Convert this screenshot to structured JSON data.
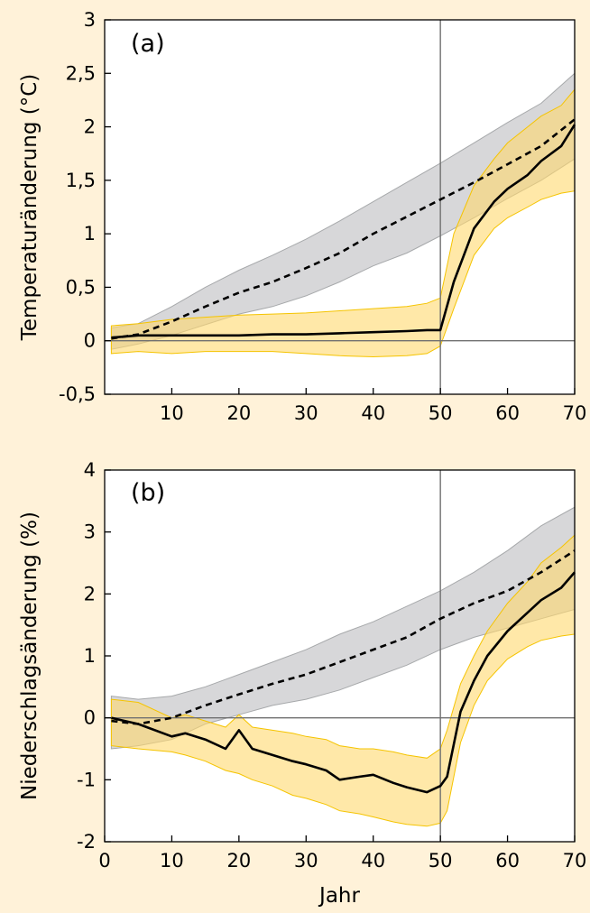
{
  "colors": {
    "background": "#FFF2D9",
    "plot_bg": "#FFFFFF",
    "gray_band": "#C9CACC",
    "gray_band_edge": "#A7A9AB",
    "yellow_band": "#FFD96E",
    "yellow_band_edge": "#F5C400",
    "line": "#000000"
  },
  "chart_data": [
    {
      "type": "area",
      "panel_label": "(a)",
      "xlabel": "",
      "ylabel": "Temperaturänderung (°C)",
      "xlim": [
        0,
        70
      ],
      "ylim": [
        -0.5,
        3
      ],
      "xticks": [
        10,
        20,
        30,
        40,
        50,
        60,
        70
      ],
      "xtick_labels": [
        "10",
        "20",
        "30",
        "40",
        "50",
        "60",
        "70"
      ],
      "yticks": [
        -0.5,
        0,
        0.5,
        1,
        1.5,
        2,
        2.5,
        3
      ],
      "ytick_labels": [
        "-0,5",
        "0",
        "0,5",
        "1",
        "1,5",
        "2",
        "2,5",
        "3"
      ],
      "vline_x": 50,
      "hline_y": 0,
      "series": [
        {
          "style": "dashed",
          "x": [
            1,
            5,
            10,
            15,
            20,
            25,
            30,
            35,
            40,
            45,
            50,
            55,
            60,
            65,
            70
          ],
          "values": [
            0.02,
            0.06,
            0.18,
            0.32,
            0.45,
            0.55,
            0.68,
            0.82,
            1.0,
            1.16,
            1.32,
            1.48,
            1.65,
            1.82,
            2.07
          ],
          "band_low": [
            -0.08,
            -0.03,
            0.05,
            0.15,
            0.25,
            0.32,
            0.42,
            0.55,
            0.7,
            0.82,
            0.98,
            1.15,
            1.33,
            1.5,
            1.7
          ],
          "band_high": [
            0.12,
            0.16,
            0.32,
            0.5,
            0.66,
            0.8,
            0.95,
            1.12,
            1.3,
            1.48,
            1.66,
            1.85,
            2.04,
            2.22,
            2.5
          ]
        },
        {
          "style": "solid",
          "x": [
            1,
            5,
            10,
            15,
            20,
            25,
            30,
            35,
            40,
            45,
            48,
            50,
            52,
            55,
            58,
            60,
            63,
            65,
            68,
            70
          ],
          "values": [
            0.03,
            0.05,
            0.05,
            0.05,
            0.05,
            0.06,
            0.06,
            0.07,
            0.08,
            0.09,
            0.1,
            0.1,
            0.55,
            1.05,
            1.3,
            1.42,
            1.55,
            1.68,
            1.82,
            2.02
          ],
          "band_low": [
            -0.12,
            -0.1,
            -0.12,
            -0.1,
            -0.1,
            -0.1,
            -0.12,
            -0.14,
            -0.15,
            -0.14,
            -0.12,
            -0.05,
            0.3,
            0.8,
            1.05,
            1.15,
            1.25,
            1.32,
            1.38,
            1.4
          ],
          "band_high": [
            0.14,
            0.16,
            0.2,
            0.22,
            0.24,
            0.25,
            0.26,
            0.28,
            0.3,
            0.32,
            0.35,
            0.4,
            1.0,
            1.45,
            1.7,
            1.85,
            2.0,
            2.1,
            2.2,
            2.35
          ]
        }
      ]
    },
    {
      "type": "area",
      "panel_label": "(b)",
      "xlabel": "Jahr",
      "ylabel": "Niederschlagsänderung (%)",
      "xlim": [
        0,
        70
      ],
      "ylim": [
        -2,
        4
      ],
      "xticks": [
        0,
        10,
        20,
        30,
        40,
        50,
        60,
        70
      ],
      "xtick_labels": [
        "0",
        "10",
        "20",
        "30",
        "40",
        "50",
        "60",
        "70"
      ],
      "yticks": [
        -2,
        -1,
        0,
        1,
        2,
        3,
        4
      ],
      "ytick_labels": [
        "-2",
        "-1",
        "0",
        "1",
        "2",
        "3",
        "4"
      ],
      "vline_x": 50,
      "hline_y": 0,
      "series": [
        {
          "style": "dashed",
          "x": [
            1,
            5,
            10,
            15,
            20,
            25,
            30,
            35,
            40,
            45,
            50,
            55,
            60,
            65,
            70
          ],
          "values": [
            -0.05,
            -0.1,
            0.0,
            0.2,
            0.38,
            0.55,
            0.7,
            0.9,
            1.1,
            1.3,
            1.6,
            1.85,
            2.05,
            2.35,
            2.7
          ],
          "band_low": [
            -0.5,
            -0.45,
            -0.35,
            -0.1,
            0.05,
            0.2,
            0.3,
            0.45,
            0.65,
            0.85,
            1.1,
            1.3,
            1.45,
            1.6,
            1.75
          ],
          "band_high": [
            0.35,
            0.3,
            0.35,
            0.5,
            0.7,
            0.9,
            1.1,
            1.35,
            1.55,
            1.8,
            2.05,
            2.35,
            2.7,
            3.1,
            3.4
          ]
        },
        {
          "style": "solid",
          "x": [
            1,
            5,
            10,
            12,
            15,
            18,
            20,
            22,
            25,
            28,
            30,
            33,
            35,
            38,
            40,
            43,
            45,
            48,
            50,
            51,
            53,
            55,
            57,
            60,
            63,
            65,
            68,
            70
          ],
          "values": [
            0.0,
            -0.1,
            -0.3,
            -0.25,
            -0.35,
            -0.5,
            -0.2,
            -0.5,
            -0.6,
            -0.7,
            -0.75,
            -0.85,
            -1.0,
            -0.95,
            -0.92,
            -1.05,
            -1.12,
            -1.2,
            -1.1,
            -0.95,
            0.1,
            0.6,
            1.0,
            1.4,
            1.7,
            1.9,
            2.1,
            2.35
          ],
          "band_low": [
            -0.45,
            -0.5,
            -0.55,
            -0.6,
            -0.7,
            -0.85,
            -0.9,
            -1.0,
            -1.1,
            -1.25,
            -1.3,
            -1.4,
            -1.5,
            -1.55,
            -1.6,
            -1.68,
            -1.72,
            -1.75,
            -1.7,
            -1.5,
            -0.4,
            0.2,
            0.6,
            0.95,
            1.15,
            1.25,
            1.32,
            1.35
          ],
          "band_high": [
            0.3,
            0.25,
            0.0,
            0.05,
            -0.05,
            -0.15,
            0.05,
            -0.15,
            -0.2,
            -0.25,
            -0.3,
            -0.35,
            -0.45,
            -0.5,
            -0.5,
            -0.55,
            -0.6,
            -0.65,
            -0.5,
            -0.2,
            0.55,
            1.0,
            1.4,
            1.85,
            2.2,
            2.5,
            2.75,
            2.95
          ]
        }
      ]
    }
  ]
}
